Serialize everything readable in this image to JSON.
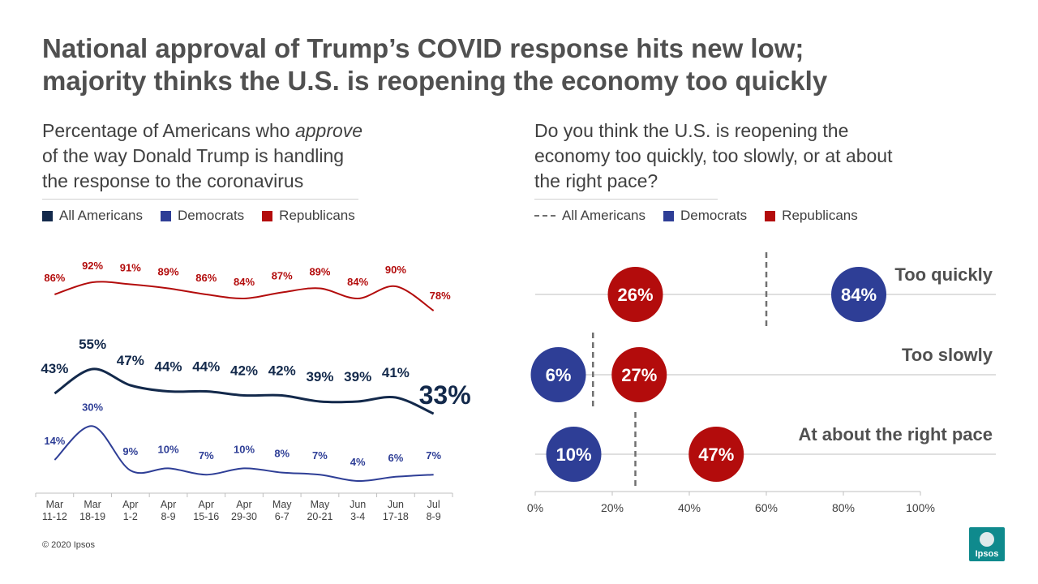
{
  "title": {
    "line1": "National approval of Trump’s COVID response hits new low;",
    "line2": "majority thinks the U.S. is reopening the economy too quickly"
  },
  "left_panel": {
    "subtitle_pre": "Percentage of Americans who ",
    "subtitle_em": "approve",
    "subtitle_line2": "of the way Donald Trump is handling",
    "subtitle_line3": "the response to the coronavirus",
    "legend": [
      {
        "label": "All Americans",
        "color": "#13294b"
      },
      {
        "label": "Democrats",
        "color": "#2e3e96"
      },
      {
        "label": "Republicans",
        "color": "#b30c0c"
      }
    ]
  },
  "right_panel": {
    "subtitle_line1": "Do you think the U.S. is reopening the",
    "subtitle_line2": "economy too quickly, too slowly, or at about",
    "subtitle_line3": "the right pace?",
    "legend": [
      {
        "label": "All Americans",
        "style": "dashed",
        "color": "#707070"
      },
      {
        "label": "Democrats",
        "color": "#2e3e96"
      },
      {
        "label": "Republicans",
        "color": "#b30c0c"
      }
    ]
  },
  "chart_data": [
    {
      "type": "line",
      "categories": [
        [
          "Mar",
          "11-12"
        ],
        [
          "Mar",
          "18-19"
        ],
        [
          "Apr",
          "1-2"
        ],
        [
          "Apr",
          "8-9"
        ],
        [
          "Apr",
          "15-16"
        ],
        [
          "Apr",
          "29-30"
        ],
        [
          "May",
          "6-7"
        ],
        [
          "May",
          "20-21"
        ],
        [
          "Jun",
          "3-4"
        ],
        [
          "Jun",
          "17-18"
        ],
        [
          "Jul",
          "8-9"
        ]
      ],
      "series": [
        {
          "name": "Republicans",
          "color": "#b30c0c",
          "values": [
            86,
            92,
            91,
            89,
            86,
            84,
            87,
            89,
            84,
            90,
            78
          ],
          "labels": [
            "86%",
            "92%",
            "91%",
            "89%",
            "86%",
            "84%",
            "87%",
            "89%",
            "84%",
            "90%",
            "78%"
          ]
        },
        {
          "name": "All Americans",
          "color": "#13294b",
          "values": [
            43,
            55,
            47,
            44,
            44,
            42,
            42,
            39,
            39,
            41,
            33
          ],
          "labels": [
            "43%",
            "55%",
            "47%",
            "44%",
            "44%",
            "42%",
            "42%",
            "39%",
            "39%",
            "41%",
            "33%"
          ]
        },
        {
          "name": "Democrats",
          "color": "#2e3e96",
          "values": [
            14,
            30,
            9,
            10,
            7,
            10,
            8,
            7,
            4,
            6,
            7
          ],
          "labels": [
            "14%",
            "30%",
            "9%",
            "10%",
            "7%",
            "10%",
            "8%",
            "7%",
            "4%",
            "6%",
            "7%"
          ]
        }
      ]
    },
    {
      "type": "scatter",
      "xlim": [
        0,
        100
      ],
      "x_ticks": [
        "0%",
        "20%",
        "40%",
        "60%",
        "80%",
        "100%"
      ],
      "rows": [
        {
          "label": "Too quickly",
          "all_americans": 60,
          "points": [
            {
              "series": "Republicans",
              "value": 26,
              "label": "26%",
              "color": "#b30c0c"
            },
            {
              "series": "Democrats",
              "value": 84,
              "label": "84%",
              "color": "#2e3e96"
            }
          ]
        },
        {
          "label": "Too slowly",
          "all_americans": 15,
          "points": [
            {
              "series": "Democrats",
              "value": 6,
              "label": "6%",
              "color": "#2e3e96"
            },
            {
              "series": "Republicans",
              "value": 27,
              "label": "27%",
              "color": "#b30c0c"
            }
          ]
        },
        {
          "label": "At about the right pace",
          "all_americans": 26,
          "points": [
            {
              "series": "Democrats",
              "value": 10,
              "label": "10%",
              "color": "#2e3e96"
            },
            {
              "series": "Republicans",
              "value": 47,
              "label": "47%",
              "color": "#b30c0c"
            }
          ]
        }
      ]
    }
  ],
  "footer": {
    "copyright": "© 2020 Ipsos",
    "logo_text": "Ipsos"
  }
}
